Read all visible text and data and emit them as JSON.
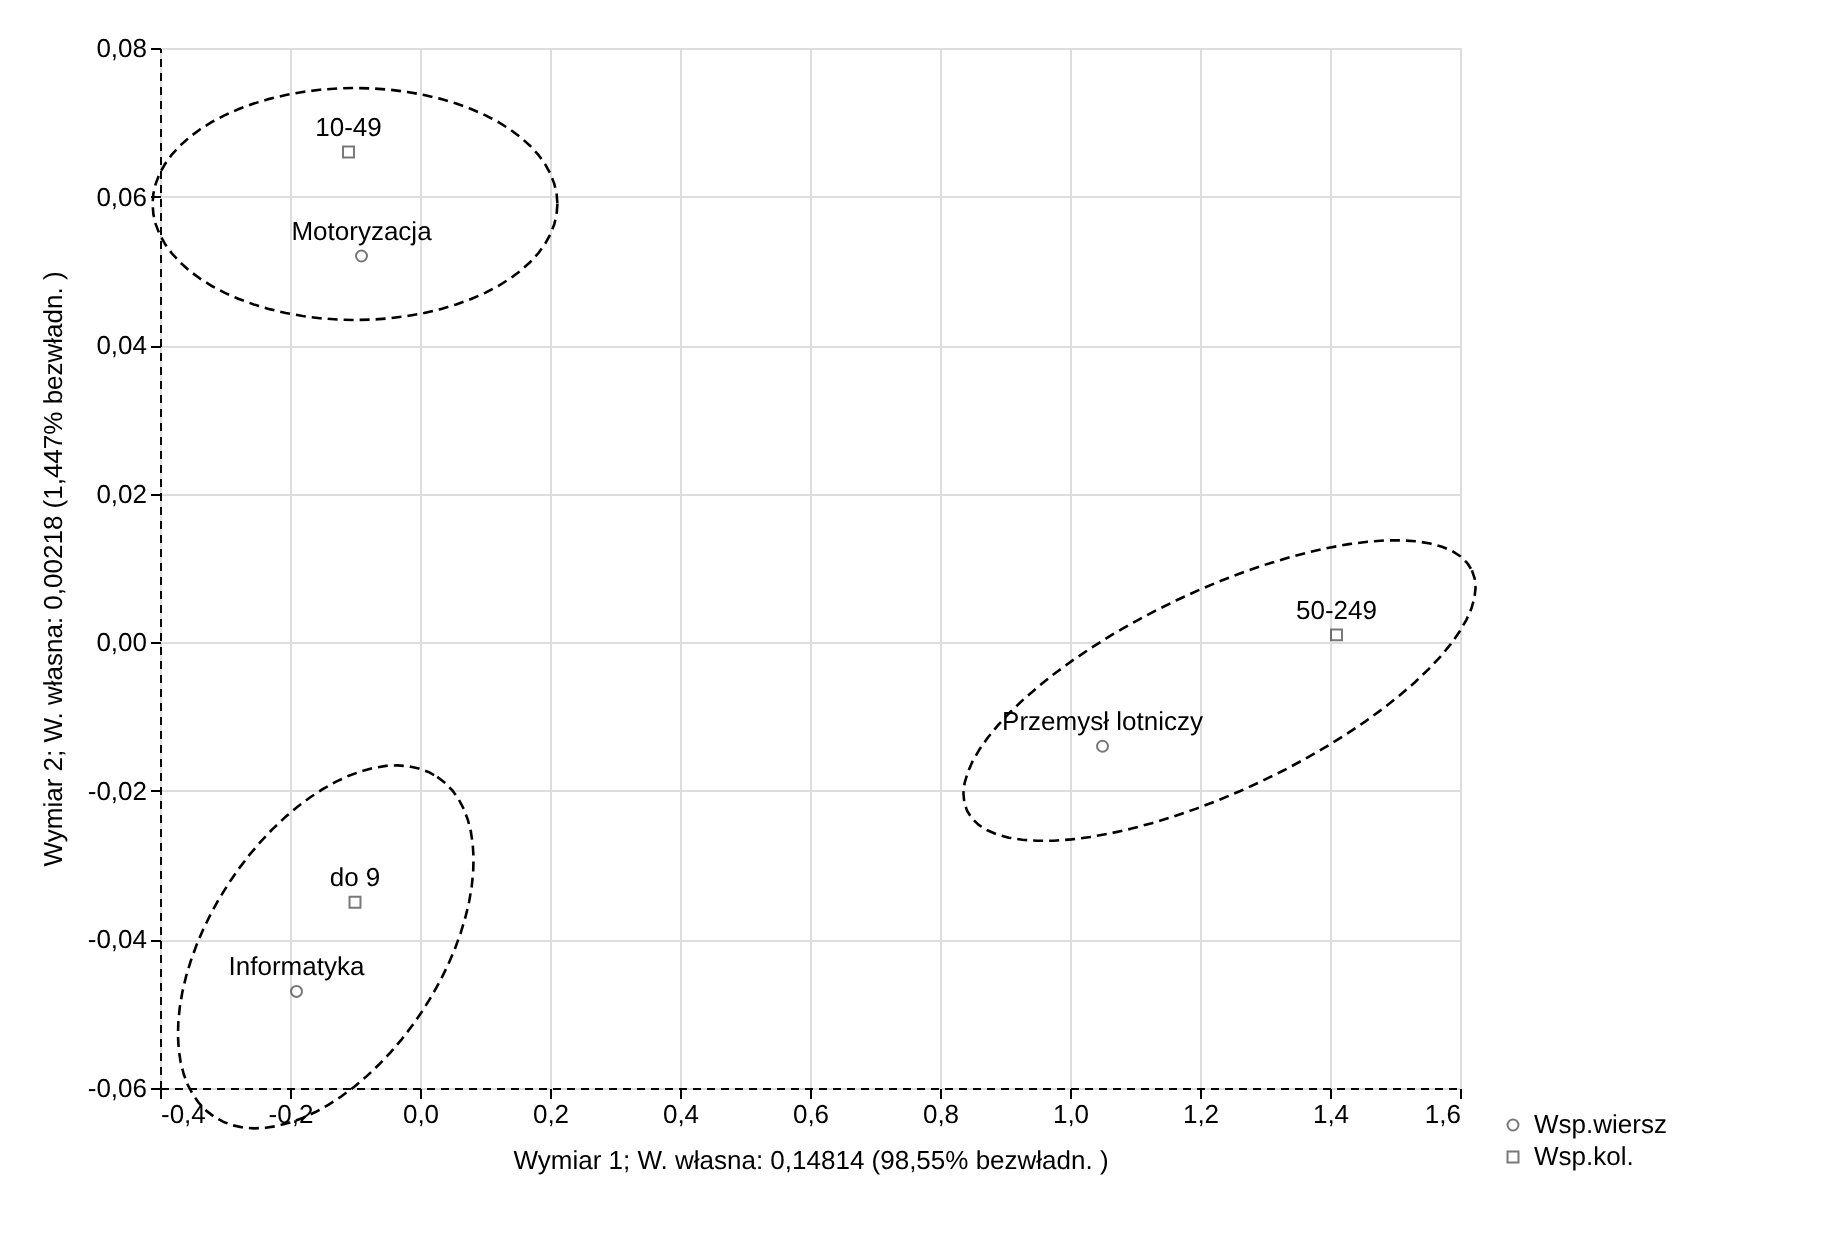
{
  "chart_data": {
    "type": "scatter",
    "xlabel": "Wymiar   1; W. własna:  0,14814 (98,55% bezwładn. )",
    "ylabel": "Wymiar   2; W. własna:  0,00218 (1,447% bezwładn. )",
    "series": [
      {
        "name": "Wsp.wiersz",
        "color": "#404040",
        "marker": "circle",
        "x": [
          -0.09,
          1.05,
          -0.19
        ],
        "values": [
          0.052,
          -0.014,
          -0.047
        ]
      },
      {
        "name": "Wsp.kol.",
        "color": "#404040",
        "marker": "square",
        "x": [
          -0.11,
          1.41,
          -0.1
        ],
        "values": [
          0.066,
          0.001,
          -0.035
        ]
      }
    ],
    "annotations": [
      {
        "text": "Motoryzacja",
        "x": -0.09,
        "y": 0.052
      },
      {
        "text": "Przemysł lotniczy",
        "x": 1.05,
        "y": -0.014
      },
      {
        "text": "Informatyka",
        "x": -0.19,
        "y": -0.047
      },
      {
        "text": "10-49",
        "x": -0.11,
        "y": 0.066
      },
      {
        "text": "50-249",
        "x": 1.41,
        "y": 0.001
      },
      {
        "text": "do 9",
        "x": -0.1,
        "y": -0.035
      }
    ],
    "xlim": [
      -0.4,
      1.6
    ],
    "xticks": [
      {
        "value": -0.4,
        "label": "-0,4"
      },
      {
        "value": -0.2,
        "label": "-0,2"
      },
      {
        "value": 0.0,
        "label": "0,0"
      },
      {
        "value": 0.2,
        "label": "0,2"
      },
      {
        "value": 0.4,
        "label": "0,4"
      },
      {
        "value": 0.6,
        "label": "0,6"
      },
      {
        "value": 0.8,
        "label": "0,8"
      },
      {
        "value": 1.0,
        "label": "1,0"
      },
      {
        "value": 1.2,
        "label": "1,2"
      },
      {
        "value": 1.4,
        "label": "1,4"
      },
      {
        "value": 1.6,
        "label": "1,6"
      }
    ],
    "ylim": [
      -0.06,
      0.08
    ],
    "yticks": [
      {
        "value": -0.06,
        "label": "-0,06"
      },
      {
        "value": -0.04,
        "label": "-0,04"
      },
      {
        "value": -0.02,
        "label": "-0,02"
      },
      {
        "value": 0.0,
        "label": "0,00"
      },
      {
        "value": 0.02,
        "label": "0,02"
      },
      {
        "value": 0.04,
        "label": "0,04"
      },
      {
        "value": 0.06,
        "label": "0,06"
      },
      {
        "value": 0.08,
        "label": "0,08"
      }
    ],
    "grid": true,
    "legend": "bottom right"
  }
}
